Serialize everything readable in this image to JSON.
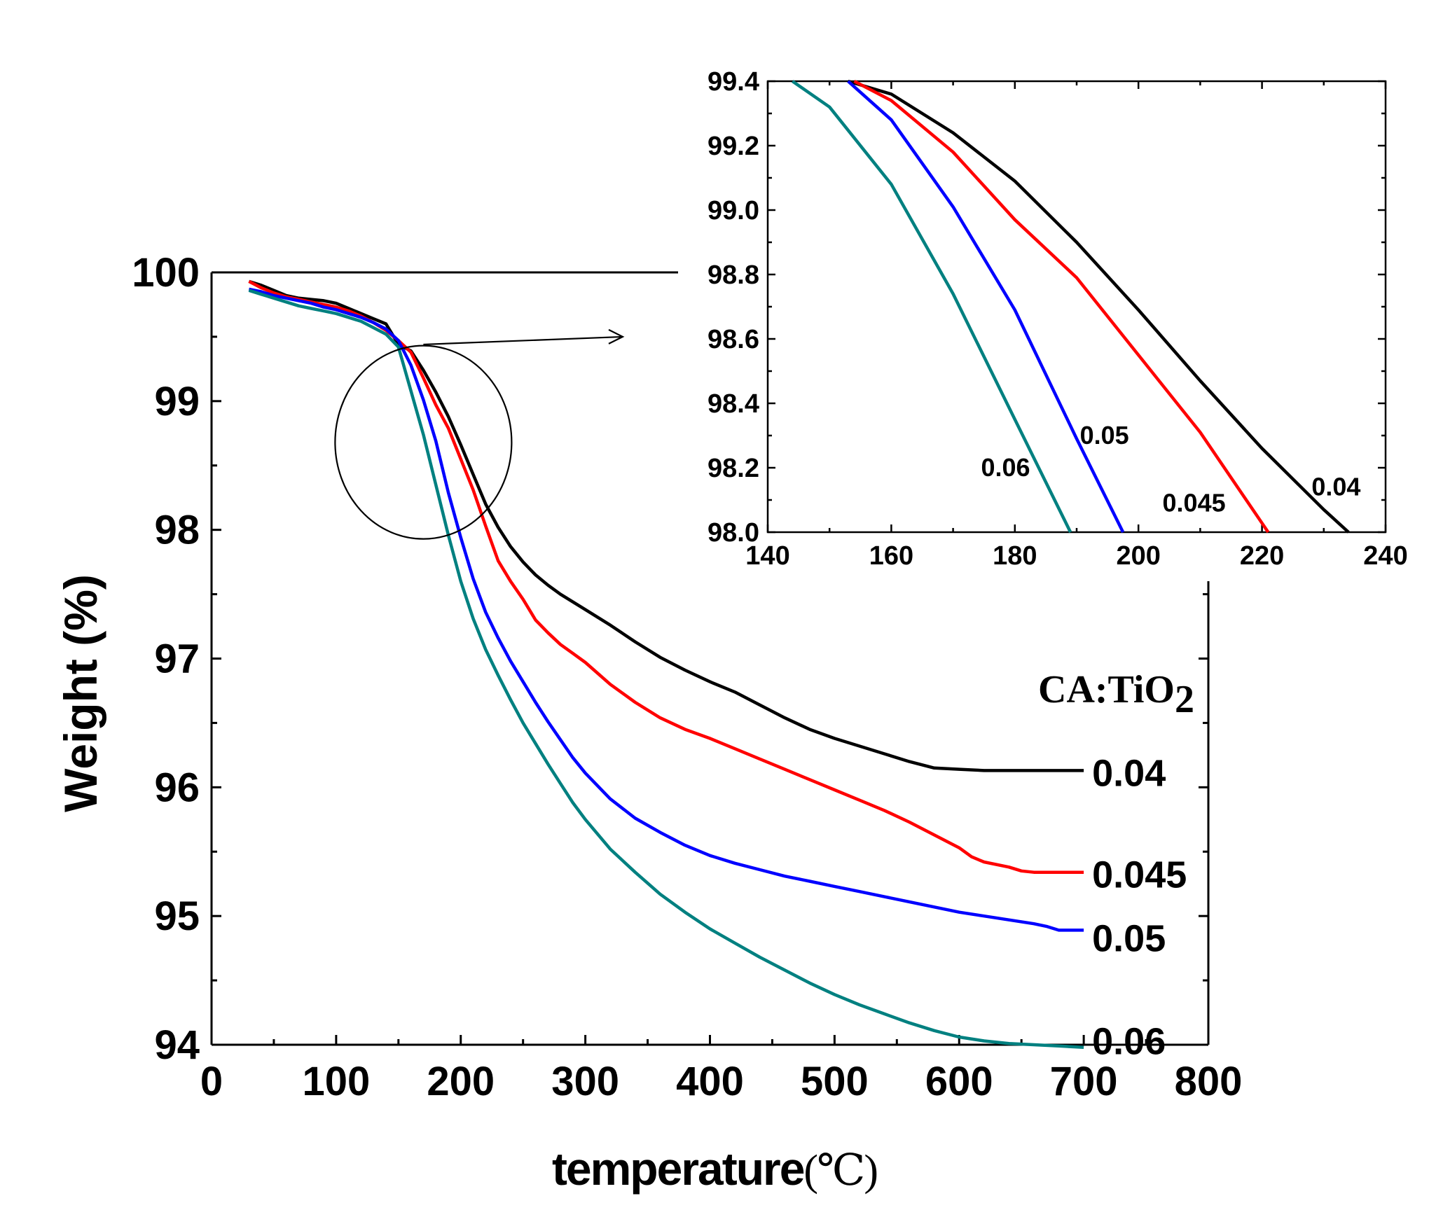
{
  "chart_data": [
    {
      "id": "main",
      "type": "line",
      "xlabel": "temperature",
      "xunit": "(℃)",
      "ylabel": "Weight (%)",
      "xlim": [
        0,
        800
      ],
      "ylim": [
        94,
        100
      ],
      "xticks": [
        0,
        100,
        200,
        300,
        400,
        500,
        600,
        700,
        800
      ],
      "yticks": [
        94,
        95,
        96,
        97,
        98,
        99,
        100
      ],
      "legend_title": "CA:TiO",
      "legend_title_sub": "2",
      "series": [
        {
          "name": "0.04",
          "color": "#000000",
          "x": [
            30,
            40,
            50,
            60,
            70,
            80,
            90,
            100,
            110,
            120,
            130,
            140,
            150,
            160,
            170,
            180,
            190,
            200,
            210,
            220,
            230,
            240,
            250,
            260,
            270,
            280,
            290,
            300,
            320,
            340,
            360,
            380,
            400,
            420,
            440,
            460,
            480,
            500,
            520,
            540,
            560,
            580,
            600,
            620,
            640,
            660,
            680,
            700
          ],
          "y": [
            99.93,
            99.9,
            99.86,
            99.82,
            99.8,
            99.79,
            99.78,
            99.76,
            99.72,
            99.68,
            99.64,
            99.6,
            99.44,
            99.39,
            99.24,
            99.07,
            98.88,
            98.66,
            98.43,
            98.2,
            98.02,
            97.87,
            97.75,
            97.65,
            97.57,
            97.5,
            97.44,
            97.38,
            97.26,
            97.13,
            97.01,
            96.91,
            96.82,
            96.74,
            96.64,
            96.54,
            96.45,
            96.38,
            96.32,
            96.26,
            96.2,
            96.15,
            96.14,
            96.13,
            96.13,
            96.13,
            96.13,
            96.13
          ]
        },
        {
          "name": "0.045",
          "color": "#ff0000",
          "x": [
            30,
            40,
            50,
            60,
            70,
            80,
            90,
            100,
            110,
            120,
            130,
            140,
            150,
            160,
            170,
            180,
            190,
            200,
            210,
            220,
            230,
            240,
            250,
            260,
            270,
            280,
            290,
            300,
            320,
            340,
            360,
            380,
            400,
            420,
            440,
            460,
            480,
            500,
            520,
            540,
            560,
            580,
            600,
            610,
            620,
            640,
            650,
            660,
            680,
            700
          ],
          "y": [
            99.93,
            99.88,
            99.84,
            99.81,
            99.79,
            99.77,
            99.75,
            99.73,
            99.7,
            99.66,
            99.61,
            99.55,
            99.47,
            99.38,
            99.18,
            98.97,
            98.79,
            98.55,
            98.31,
            98.03,
            97.76,
            97.6,
            97.46,
            97.3,
            97.2,
            97.11,
            97.04,
            96.97,
            96.8,
            96.66,
            96.54,
            96.45,
            96.38,
            96.3,
            96.22,
            96.14,
            96.06,
            95.98,
            95.9,
            95.82,
            95.73,
            95.63,
            95.53,
            95.46,
            95.42,
            95.38,
            95.35,
            95.34,
            95.34,
            95.34
          ]
        },
        {
          "name": "0.05",
          "color": "#0000ff",
          "x": [
            30,
            40,
            50,
            60,
            70,
            80,
            90,
            100,
            110,
            120,
            130,
            140,
            150,
            160,
            170,
            180,
            190,
            200,
            210,
            220,
            230,
            240,
            250,
            260,
            270,
            280,
            290,
            300,
            320,
            340,
            360,
            380,
            400,
            420,
            440,
            460,
            480,
            500,
            520,
            540,
            560,
            580,
            600,
            620,
            640,
            660,
            670,
            680,
            700
          ],
          "y": [
            99.87,
            99.85,
            99.82,
            99.8,
            99.78,
            99.76,
            99.73,
            99.71,
            99.68,
            99.65,
            99.61,
            99.56,
            99.47,
            99.28,
            99.01,
            98.69,
            98.29,
            97.94,
            97.62,
            97.36,
            97.16,
            96.98,
            96.82,
            96.66,
            96.51,
            96.37,
            96.23,
            96.11,
            95.91,
            95.76,
            95.65,
            95.55,
            95.47,
            95.41,
            95.36,
            95.31,
            95.27,
            95.23,
            95.19,
            95.15,
            95.11,
            95.07,
            95.03,
            95,
            94.97,
            94.94,
            94.92,
            94.89,
            94.89
          ]
        },
        {
          "name": "0.06",
          "color": "#008080",
          "x": [
            30,
            40,
            50,
            60,
            70,
            80,
            90,
            100,
            110,
            120,
            130,
            140,
            150,
            160,
            170,
            180,
            190,
            200,
            210,
            220,
            230,
            240,
            250,
            260,
            270,
            280,
            290,
            300,
            320,
            340,
            360,
            380,
            400,
            420,
            440,
            460,
            480,
            500,
            520,
            540,
            560,
            580,
            600,
            620,
            640,
            660,
            680,
            700
          ],
          "y": [
            99.86,
            99.83,
            99.8,
            99.77,
            99.74,
            99.72,
            99.7,
            99.68,
            99.65,
            99.62,
            99.57,
            99.52,
            99.42,
            99.08,
            98.74,
            98.35,
            97.96,
            97.6,
            97.31,
            97.07,
            96.87,
            96.68,
            96.5,
            96.34,
            96.18,
            96.03,
            95.88,
            95.75,
            95.52,
            95.34,
            95.17,
            95.03,
            94.9,
            94.79,
            94.68,
            94.58,
            94.48,
            94.39,
            94.31,
            94.24,
            94.17,
            94.11,
            94.06,
            94.03,
            94.01,
            94.0,
            93.99,
            93.98
          ]
        }
      ],
      "zoom_circle_center": [
        170,
        98.68
      ],
      "zoom_arrow_from": [
        170,
        99.44
      ],
      "zoom_arrow_to": [
        330,
        99.5
      ]
    },
    {
      "id": "inset",
      "type": "line",
      "xlim": [
        140,
        240
      ],
      "ylim": [
        98.0,
        99.4
      ],
      "xticks": [
        140,
        160,
        180,
        200,
        220,
        240
      ],
      "yticks": [
        "98.0",
        "98.2",
        "98.4",
        "98.6",
        "98.8",
        "99.0",
        "99.2",
        "99.4"
      ],
      "series": [
        {
          "name": "0.04",
          "color": "#000000",
          "x": [
            153,
            160,
            170,
            180,
            190,
            200,
            210,
            220,
            230,
            234
          ],
          "y": [
            99.4,
            99.36,
            99.24,
            99.09,
            98.9,
            98.69,
            98.47,
            98.26,
            98.07,
            98.0
          ]
        },
        {
          "name": "0.045",
          "color": "#ff0000",
          "x": [
            154,
            160,
            170,
            180,
            190,
            200,
            210,
            221
          ],
          "y": [
            99.4,
            99.34,
            99.18,
            98.97,
            98.79,
            98.55,
            98.31,
            98.0
          ]
        },
        {
          "name": "0.05",
          "color": "#0000ff",
          "x": [
            153,
            160,
            170,
            180,
            190,
            197.5
          ],
          "y": [
            99.4,
            99.28,
            99.01,
            98.69,
            98.29,
            98.0
          ]
        },
        {
          "name": "0.06",
          "color": "#008080",
          "x": [
            144,
            150,
            160,
            170,
            180,
            189
          ],
          "y": [
            99.4,
            99.32,
            99.08,
            98.74,
            98.35,
            98.0
          ]
        }
      ],
      "labels": [
        {
          "text": "0.04",
          "x": 232,
          "y": 98.14
        },
        {
          "text": "0.045",
          "x": 209,
          "y": 98.09
        },
        {
          "text": "0.05",
          "x": 194.5,
          "y": 98.3
        },
        {
          "text": "0.06",
          "x": 178.5,
          "y": 98.2
        }
      ]
    }
  ]
}
